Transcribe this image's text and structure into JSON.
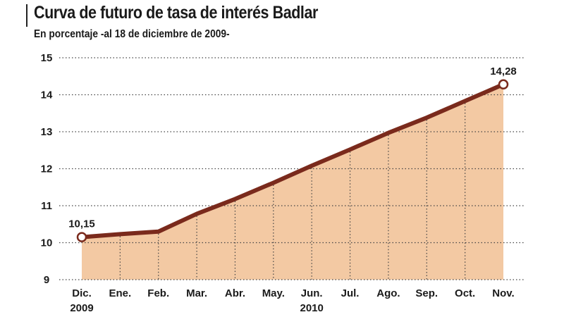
{
  "header": {
    "title": "Curva de futuro de tasa de interés Badlar",
    "subtitle": "En porcentaje -al 18 de diciembre de 2009-"
  },
  "colors": {
    "line": "#7a2a1c",
    "area": "#f3c9a3",
    "grid": "#444444",
    "marker_fill": "#ffffff"
  },
  "chart_data": {
    "type": "area",
    "title": "Curva de futuro de tasa de interés Badlar",
    "subtitle": "En porcentaje -al 18 de diciembre de 2009-",
    "categories": [
      "Dic.",
      "Ene.",
      "Feb.",
      "Mar.",
      "Abr.",
      "May.",
      "Jun.",
      "Jul.",
      "Ago.",
      "Sep.",
      "Oct.",
      "Nov."
    ],
    "category_sublabels": [
      "2009",
      "",
      "",
      "",
      "",
      "",
      "2010",
      "",
      "",
      "",
      "",
      ""
    ],
    "series": [
      {
        "values": [
          10.15,
          10.23,
          10.3,
          10.78,
          11.18,
          11.62,
          12.08,
          12.52,
          12.97,
          13.38,
          13.83,
          14.28
        ]
      }
    ],
    "data_labels": [
      {
        "index": 0,
        "text": "10,15"
      },
      {
        "index": 11,
        "text": "14,28"
      }
    ],
    "ylim": [
      9,
      15
    ],
    "yticks": [
      9,
      10,
      11,
      12,
      13,
      14,
      15
    ],
    "grid": true,
    "legend": "none"
  }
}
